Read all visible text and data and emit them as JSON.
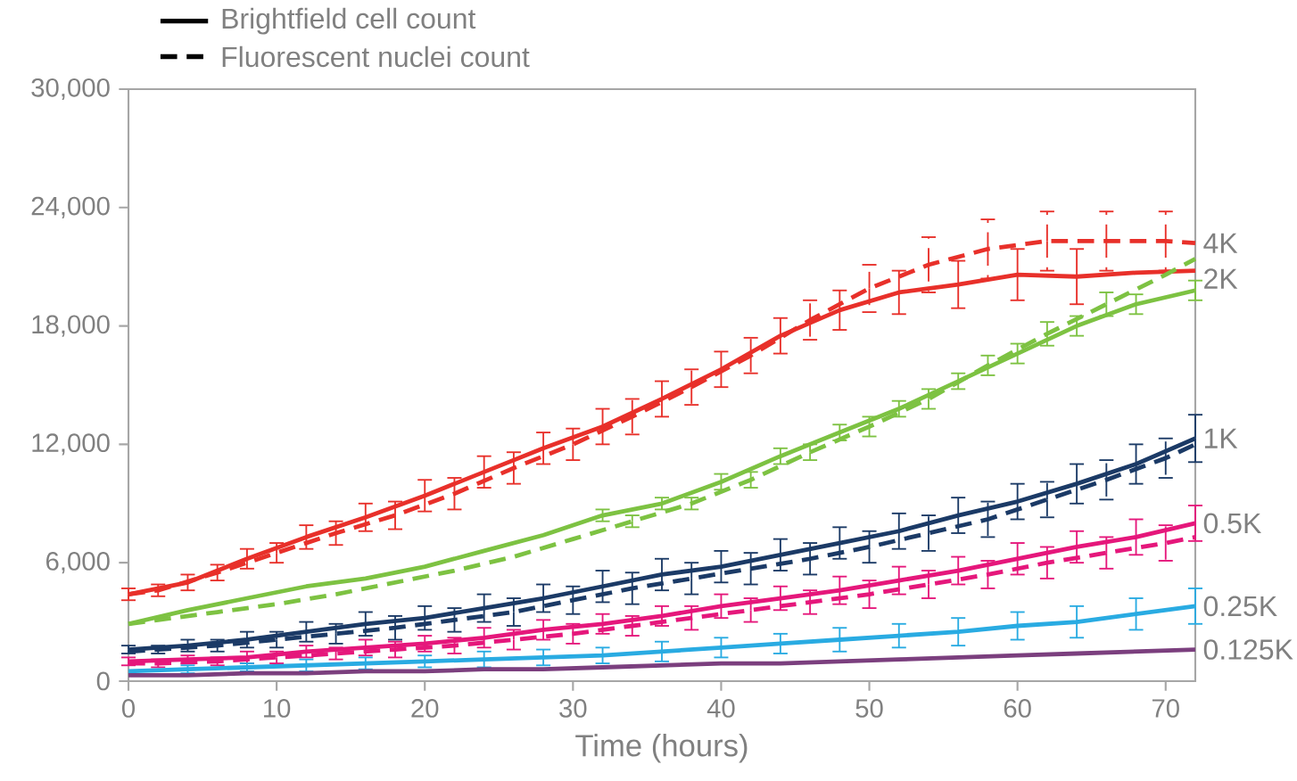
{
  "chart_data": {
    "type": "line",
    "xlabel": "Time (hours)",
    "xlim": [
      0,
      72
    ],
    "xticks": [
      0,
      10,
      20,
      30,
      40,
      50,
      60,
      70
    ],
    "ylim": [
      0,
      30000
    ],
    "yticks": [
      0,
      {
        "value": 6000,
        "label": "6,000"
      },
      {
        "value": 12000,
        "label": "12,000"
      },
      {
        "value": 18000,
        "label": "18,000"
      },
      {
        "value": 24000,
        "label": "24,000"
      },
      {
        "value": 30000,
        "label": "30,000"
      }
    ],
    "grid": false,
    "x": [
      0,
      4,
      8,
      12,
      16,
      20,
      24,
      28,
      32,
      36,
      40,
      44,
      48,
      52,
      56,
      60,
      64,
      68,
      72
    ],
    "series": [
      {
        "color": "#e8302a",
        "line_style": "solid",
        "values": [
          4400,
          5000,
          6200,
          7300,
          8300,
          9400,
          10600,
          11800,
          12900,
          14300,
          15800,
          17500,
          18800,
          19700,
          20100,
          20600,
          20500,
          20700,
          20800
        ],
        "errors": [
          300,
          400,
          500,
          600,
          700,
          800,
          800,
          800,
          900,
          900,
          900,
          900,
          1000,
          1100,
          1200,
          1300,
          1400,
          null,
          null
        ]
      },
      {
        "color": "#e8302a",
        "line_style": "dashed",
        "x": [
          0,
          2,
          6,
          10,
          14,
          18,
          22,
          26,
          30,
          34,
          38,
          42,
          46,
          50,
          54,
          58,
          62,
          66,
          70,
          72
        ],
        "values": [
          4400,
          4600,
          5500,
          6500,
          7500,
          8400,
          9500,
          10800,
          12000,
          13400,
          14900,
          16500,
          18300,
          19900,
          21100,
          21900,
          22300,
          22300,
          22300,
          22200
        ],
        "errors": [
          null,
          300,
          400,
          500,
          600,
          700,
          800,
          800,
          800,
          900,
          900,
          900,
          1000,
          1200,
          1400,
          1500,
          1500,
          1500,
          1500,
          null
        ]
      },
      {
        "color": "#7dc242",
        "line_style": "solid",
        "values": [
          2900,
          3600,
          4200,
          4800,
          5200,
          5800,
          6600,
          7400,
          8400,
          9000,
          10100,
          11400,
          12600,
          13800,
          15200,
          16600,
          18000,
          19100,
          19800
        ],
        "errors": [
          null,
          null,
          null,
          null,
          null,
          null,
          null,
          null,
          300,
          300,
          400,
          400,
          400,
          400,
          400,
          500,
          500,
          500,
          500
        ]
      },
      {
        "color": "#7dc242",
        "line_style": "dashed",
        "x": [
          0,
          2,
          6,
          10,
          14,
          18,
          22,
          26,
          30,
          34,
          38,
          42,
          46,
          50,
          54,
          58,
          62,
          66,
          70,
          72
        ],
        "values": [
          2900,
          3100,
          3500,
          3900,
          4400,
          5000,
          5600,
          6300,
          7200,
          8100,
          9000,
          10200,
          11600,
          12900,
          14300,
          16000,
          17600,
          19100,
          20600,
          21400
        ],
        "errors": [
          null,
          null,
          null,
          null,
          null,
          null,
          null,
          null,
          null,
          300,
          300,
          400,
          400,
          500,
          500,
          500,
          600,
          600,
          null,
          null
        ]
      },
      {
        "color": "#1b3a66",
        "line_style": "solid",
        "values": [
          1600,
          1800,
          2100,
          2500,
          2900,
          3200,
          3700,
          4200,
          4800,
          5400,
          5800,
          6400,
          7000,
          7600,
          8400,
          9100,
          10000,
          11000,
          12300
        ],
        "errors": [
          200,
          300,
          400,
          500,
          600,
          600,
          700,
          700,
          800,
          800,
          800,
          800,
          800,
          900,
          900,
          900,
          1000,
          1000,
          1200
        ]
      },
      {
        "color": "#1b3a66",
        "line_style": "dashed",
        "x": [
          0,
          2,
          6,
          10,
          14,
          18,
          22,
          26,
          30,
          34,
          38,
          42,
          46,
          50,
          54,
          58,
          62,
          66,
          70,
          72
        ],
        "values": [
          1500,
          1600,
          1800,
          2100,
          2400,
          2700,
          3100,
          3500,
          4100,
          4700,
          5200,
          5700,
          6200,
          6800,
          7500,
          8200,
          9200,
          10200,
          11300,
          12000
        ],
        "errors": [
          null,
          200,
          300,
          400,
          500,
          600,
          600,
          700,
          700,
          800,
          800,
          800,
          800,
          800,
          900,
          900,
          900,
          1000,
          1000,
          null
        ]
      },
      {
        "color": "#e5177b",
        "line_style": "solid",
        "values": [
          1000,
          1100,
          1200,
          1500,
          1700,
          1900,
          2200,
          2600,
          2900,
          3300,
          3800,
          4200,
          4600,
          5100,
          5600,
          6200,
          6800,
          7300,
          8000
        ],
        "errors": [
          200,
          200,
          300,
          300,
          400,
          400,
          500,
          500,
          500,
          500,
          600,
          600,
          700,
          700,
          700,
          800,
          800,
          900,
          900
        ]
      },
      {
        "color": "#e5177b",
        "line_style": "dashed",
        "x": [
          0,
          2,
          6,
          10,
          14,
          18,
          22,
          26,
          30,
          34,
          38,
          42,
          46,
          50,
          54,
          58,
          62,
          66,
          70,
          72
        ],
        "values": [
          900,
          900,
          1000,
          1200,
          1400,
          1600,
          1800,
          2100,
          2400,
          2800,
          3200,
          3600,
          4000,
          4400,
          4900,
          5400,
          6000,
          6500,
          7000,
          7300
        ],
        "errors": [
          null,
          200,
          200,
          300,
          300,
          400,
          400,
          500,
          500,
          500,
          600,
          600,
          600,
          700,
          700,
          700,
          800,
          800,
          900,
          null
        ]
      },
      {
        "color": "#29abe2",
        "line_style": "solid",
        "values": [
          500,
          600,
          700,
          800,
          900,
          1000,
          1100,
          1200,
          1300,
          1500,
          1700,
          1900,
          2100,
          2300,
          2500,
          2800,
          3000,
          3400,
          3800
        ],
        "errors": [
          null,
          200,
          200,
          300,
          300,
          300,
          400,
          400,
          400,
          500,
          500,
          500,
          600,
          600,
          700,
          700,
          800,
          800,
          900
        ]
      },
      {
        "color": "#7b3f7e",
        "line_style": "solid",
        "values": [
          300,
          300,
          400,
          400,
          500,
          500,
          600,
          600,
          700,
          800,
          900,
          900,
          1000,
          1100,
          1200,
          1300,
          1400,
          1500,
          1600
        ]
      }
    ],
    "annotations": [
      "Brightfield cell count",
      "Fluorescent nuclei count",
      "4K",
      "2K",
      "1K",
      "0.5K",
      "0.25K",
      "0.125K"
    ]
  }
}
